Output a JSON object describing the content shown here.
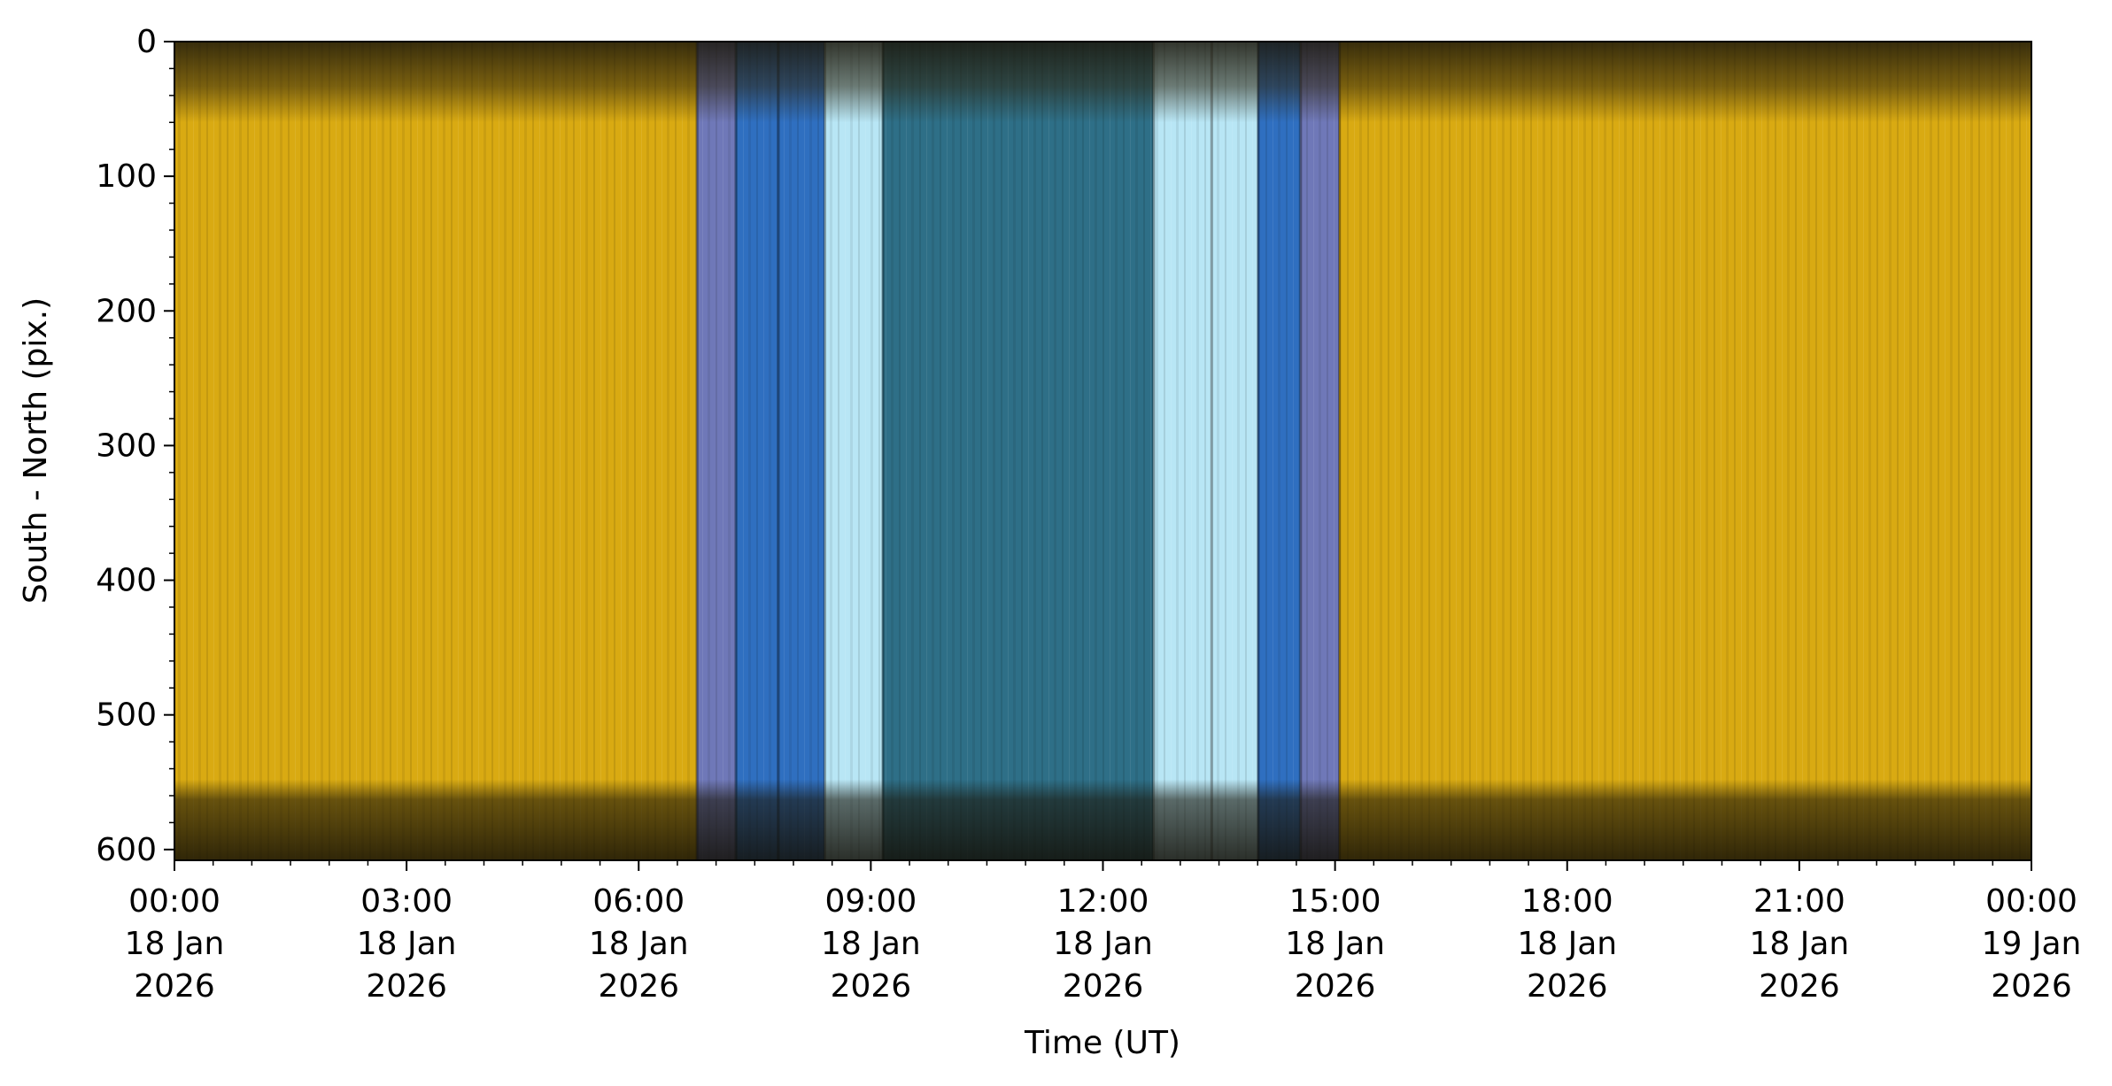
{
  "chart_data": {
    "type": "heatmap",
    "title": "",
    "xlabel": "Time (UT)",
    "ylabel": "South - North (pix.)",
    "x_range_hours": [
      0,
      24
    ],
    "ylim": [
      608,
      0
    ],
    "y_ticks": [
      0,
      100,
      200,
      300,
      400,
      500,
      600
    ],
    "x_ticks": [
      {
        "hour": 0,
        "lines": [
          "00:00",
          "18 Jan",
          "2026"
        ]
      },
      {
        "hour": 3,
        "lines": [
          "03:00",
          "18 Jan",
          "2026"
        ]
      },
      {
        "hour": 6,
        "lines": [
          "06:00",
          "18 Jan",
          "2026"
        ]
      },
      {
        "hour": 9,
        "lines": [
          "09:00",
          "18 Jan",
          "2026"
        ]
      },
      {
        "hour": 12,
        "lines": [
          "12:00",
          "18 Jan",
          "2026"
        ]
      },
      {
        "hour": 15,
        "lines": [
          "15:00",
          "18 Jan",
          "2026"
        ]
      },
      {
        "hour": 18,
        "lines": [
          "18:00",
          "18 Jan",
          "2026"
        ]
      },
      {
        "hour": 21,
        "lines": [
          "21:00",
          "18 Jan",
          "2026"
        ]
      },
      {
        "hour": 24,
        "lines": [
          "00:00",
          "19 Jan",
          "2026"
        ]
      }
    ],
    "colors": {
      "day_gold": "#d9aa12",
      "day_gold_bright": "#f0c418",
      "dusk_purple": "#6f78b8",
      "twilight_blue": "#2f6fc0",
      "twilight_light": "#b8e6f5",
      "night_teal": "#2e6f87",
      "night_dark": "#0f2a33",
      "band_dark": "#3a2f14"
    },
    "time_bands": [
      {
        "start": 0.0,
        "end": 6.75,
        "color": "day_gold"
      },
      {
        "start": 6.75,
        "end": 7.25,
        "color": "dusk_purple"
      },
      {
        "start": 7.25,
        "end": 7.8,
        "color": "twilight_blue"
      },
      {
        "start": 7.8,
        "end": 8.4,
        "color": "twilight_blue"
      },
      {
        "start": 8.4,
        "end": 9.15,
        "color": "twilight_light"
      },
      {
        "start": 9.15,
        "end": 12.65,
        "color": "night_teal"
      },
      {
        "start": 12.65,
        "end": 13.4,
        "color": "twilight_light"
      },
      {
        "start": 13.4,
        "end": 14.0,
        "color": "twilight_light"
      },
      {
        "start": 14.0,
        "end": 14.55,
        "color": "twilight_blue"
      },
      {
        "start": 14.55,
        "end": 15.05,
        "color": "dusk_purple"
      },
      {
        "start": 15.05,
        "end": 24.0,
        "color": "day_gold"
      }
    ],
    "horizontal_dark_bands_pix": [
      [
        0,
        60
      ],
      [
        548,
        608
      ]
    ]
  }
}
